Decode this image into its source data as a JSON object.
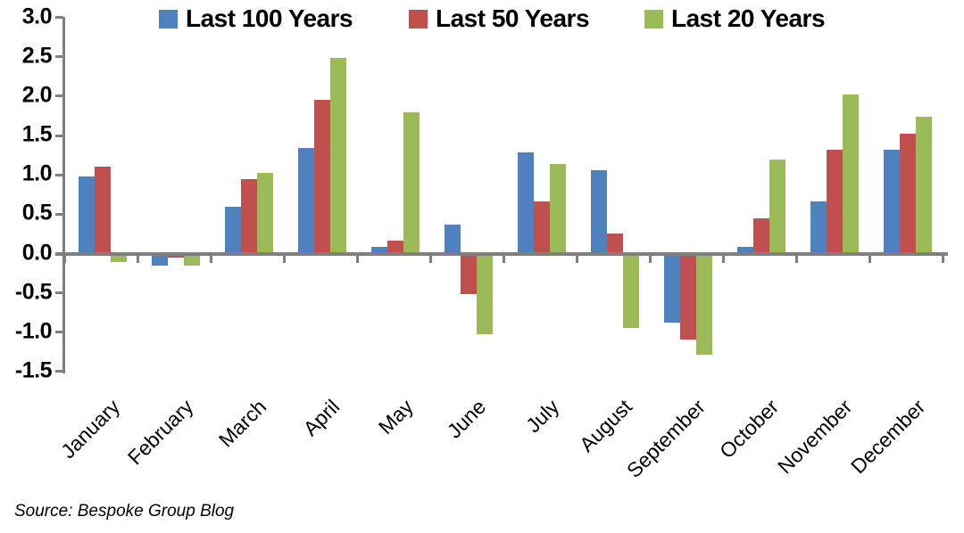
{
  "chart_data": {
    "type": "bar",
    "title": "",
    "xlabel": "",
    "ylabel": "",
    "categories": [
      "January",
      "February",
      "March",
      "April",
      "May",
      "June",
      "July",
      "August",
      "September",
      "October",
      "November",
      "December"
    ],
    "series": [
      {
        "name": "Last 100 Years",
        "color": "#4E81BD",
        "values": [
          0.98,
          -0.15,
          0.6,
          1.34,
          0.09,
          0.37,
          1.29,
          1.06,
          -0.88,
          0.09,
          0.66,
          1.32
        ]
      },
      {
        "name": "Last 50 Years",
        "color": "#C0504D",
        "values": [
          1.1,
          -0.05,
          0.95,
          1.95,
          0.16,
          -0.52,
          0.66,
          0.25,
          -1.09,
          0.45,
          1.32,
          1.52
        ]
      },
      {
        "name": "Last 20 Years",
        "color": "#9BBB59",
        "values": [
          -0.11,
          -0.15,
          1.02,
          2.49,
          1.8,
          -1.03,
          1.14,
          -0.95,
          -1.29,
          1.19,
          2.02,
          1.74
        ]
      }
    ],
    "ylim": [
      -1.5,
      3.0
    ],
    "ytick_step": 0.5,
    "ytick_labels": [
      "3.0",
      "2.5",
      "2.0",
      "1.5",
      "1.0",
      "0.5",
      "0.0",
      "-0.5",
      "-1.0",
      "-1.5"
    ],
    "legend_position": "top",
    "grid": false,
    "axis_color": "#7f7f7f",
    "text_color": "#000000"
  },
  "source_note": "Source: Bespoke Group Blog"
}
